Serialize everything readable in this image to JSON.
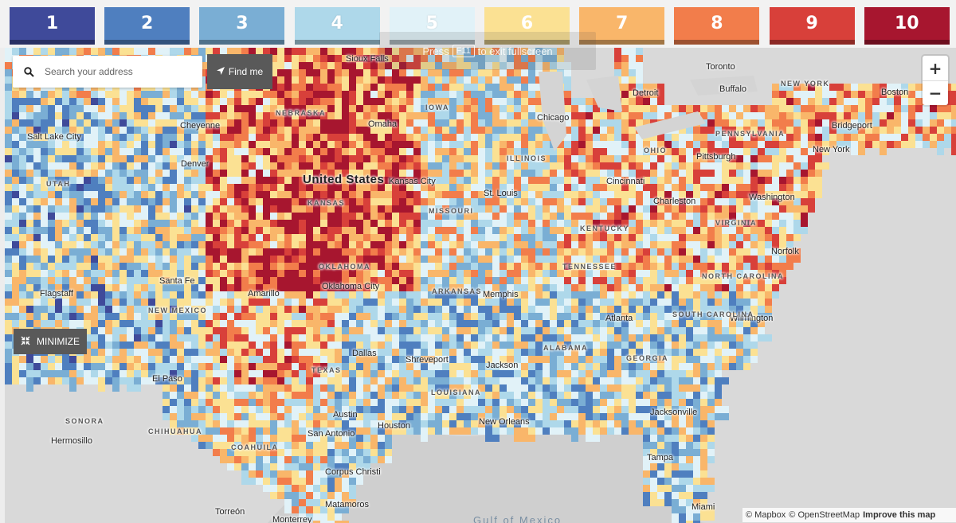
{
  "legend": {
    "items": [
      {
        "label": "1",
        "color": "#3f4a9a"
      },
      {
        "label": "2",
        "color": "#4f7fbf"
      },
      {
        "label": "3",
        "color": "#7aaed4"
      },
      {
        "label": "4",
        "color": "#aed8ea"
      },
      {
        "label": "5",
        "color": "#e1f2f8"
      },
      {
        "label": "6",
        "color": "#fbe193"
      },
      {
        "label": "7",
        "color": "#f9b66a"
      },
      {
        "label": "8",
        "color": "#f27d4b"
      },
      {
        "label": "9",
        "color": "#d8403a"
      },
      {
        "label": "10",
        "color": "#a7162f"
      }
    ]
  },
  "search": {
    "placeholder": "Search your address",
    "icon": "search-icon"
  },
  "find_me": {
    "label": "Find me",
    "icon": "location-arrow-icon"
  },
  "fullscreen_notice": {
    "prefix": "Press",
    "key": "F11",
    "suffix": "to exit fullscreen"
  },
  "zoom": {
    "in_label": "+",
    "out_label": "−"
  },
  "minimize": {
    "label": "MINIMIZE",
    "icon": "collapse-icon"
  },
  "attribution": {
    "mapbox": "© Mapbox",
    "osm": "© OpenStreetMap",
    "improve": "Improve this map"
  },
  "map_labels": {
    "country": "United States",
    "cities": [
      "Sioux Falls",
      "Toronto",
      "Detroit",
      "Buffalo",
      "Boston",
      "Salt Lake City",
      "Cheyenne",
      "Omaha",
      "Chicago",
      "New York",
      "Bridgeport",
      "Pittsburgh",
      "Denver",
      "Kansas City",
      "St. Louis",
      "Cincinnati",
      "Washington",
      "Charleston",
      "Norfolk",
      "Santa Fe",
      "Oklahoma City",
      "Amarillo",
      "Memphis",
      "Flagstaff",
      "Atlanta",
      "Wilmington",
      "Dallas",
      "Shreveport",
      "El Paso",
      "Jackson",
      "Austin",
      "Houston",
      "New Orleans",
      "Jacksonville",
      "San Antonio",
      "Hermosillo",
      "Tampa",
      "Corpus Christi",
      "Matamoros",
      "Miami",
      "Torreón",
      "Monterrey"
    ],
    "regions": [
      "NEBRASKA",
      "IOWA",
      "ILLINOIS",
      "OHIO",
      "PENNSYLVANIA",
      "UTAH",
      "KANSAS",
      "MISSOURI",
      "KENTUCKY",
      "VIRGINIA",
      "OKLAHOMA",
      "ARKANSAS",
      "TENNESSEE",
      "NORTH CAROLINA",
      "SOUTH CAROLINA",
      "NEW MEXICO",
      "TEXAS",
      "ALABAMA",
      "GEORGIA",
      "LOUISIANA",
      "SONORA",
      "CHIHUAHUA",
      "COAHUILA",
      "NEW YORK"
    ],
    "sea": "Gulf of Mexico"
  }
}
